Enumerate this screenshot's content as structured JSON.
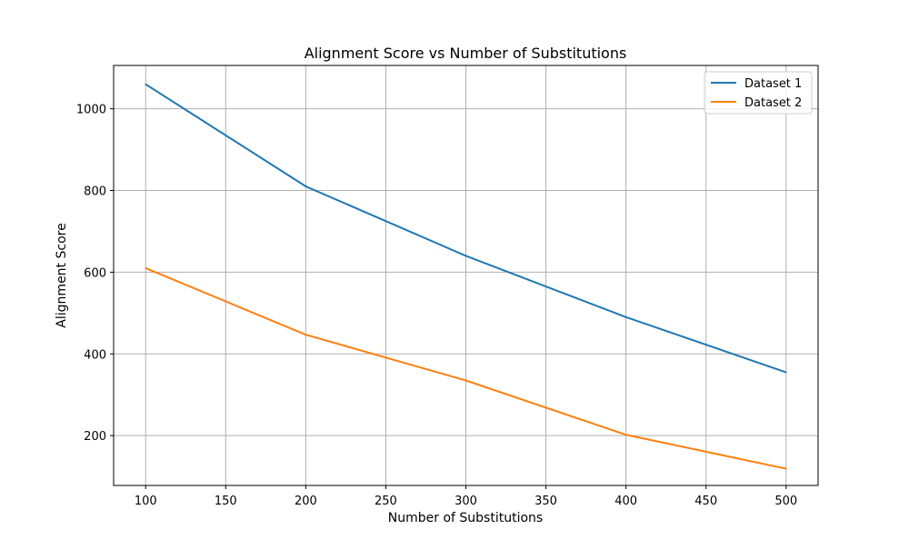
{
  "chart_data": {
    "type": "line",
    "title": "Alignment Score vs Number of Substitutions",
    "xlabel": "Number of Substitutions",
    "ylabel": "Alignment Score",
    "x": [
      100,
      200,
      300,
      400,
      500
    ],
    "series": [
      {
        "name": "Dataset 1",
        "color": "#1f77b4",
        "values": [
          1060,
          810,
          640,
          490,
          355
        ]
      },
      {
        "name": "Dataset 2",
        "color": "#ff7f0e",
        "values": [
          610,
          447,
          335,
          202,
          119
        ]
      }
    ],
    "xlim": [
      80,
      520
    ],
    "ylim": [
      78,
      1106
    ],
    "xticks": [
      100,
      150,
      200,
      250,
      300,
      350,
      400,
      450,
      500
    ],
    "yticks": [
      200,
      400,
      600,
      800,
      1000
    ],
    "grid": true,
    "legend_position": "top-right"
  }
}
